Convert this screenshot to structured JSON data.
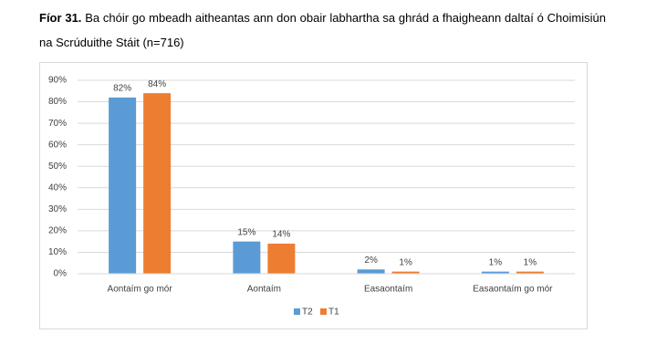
{
  "chart_data": {
    "type": "bar",
    "figure_label": "Fíor 31.",
    "title": "Ba chóir go mbeadh aitheantas ann don obair labhartha sa ghrád a fhaigheann daltaí ó Choimisiún na Scrúduithe Stáit (n=716)",
    "categories": [
      "Aontaím go mór",
      "Aontaím",
      "Easaontaím",
      "Easaontaím go mór"
    ],
    "series": [
      {
        "name": "T2",
        "color": "#5b9bd5",
        "values": [
          82,
          15,
          2,
          1
        ],
        "value_labels": [
          "82%",
          "15%",
          "2%",
          "1%"
        ]
      },
      {
        "name": "T1",
        "color": "#ed7d31",
        "values": [
          84,
          14,
          1,
          1
        ],
        "value_labels": [
          "84%",
          "14%",
          "1%",
          "1%"
        ]
      }
    ],
    "ylim": [
      0,
      90
    ],
    "yticks": [
      {
        "value": 0,
        "label": "0%"
      },
      {
        "value": 10,
        "label": "10%"
      },
      {
        "value": 20,
        "label": "20%"
      },
      {
        "value": 30,
        "label": "30%"
      },
      {
        "value": 40,
        "label": "40%"
      },
      {
        "value": 50,
        "label": "50%"
      },
      {
        "value": 60,
        "label": "60%"
      },
      {
        "value": 70,
        "label": "70%"
      },
      {
        "value": 80,
        "label": "80%"
      },
      {
        "value": 90,
        "label": "90%"
      }
    ],
    "grid": true,
    "legend": "bottom"
  }
}
